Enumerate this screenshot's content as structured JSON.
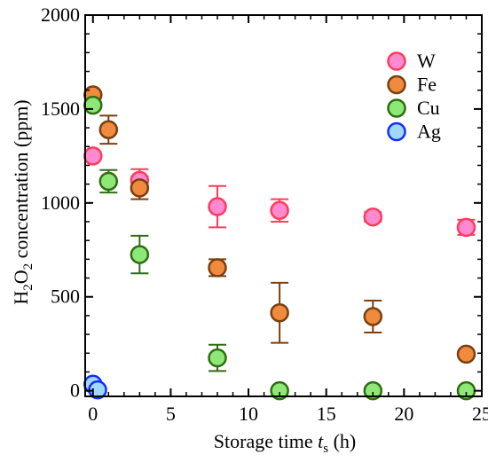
{
  "chart_data": {
    "type": "scatter",
    "xlabel_prefix": "Storage time ",
    "xlabel_var": "t",
    "xlabel_sub": "s",
    "xlabel_unit": " (h)",
    "ylabel_h": "H",
    "ylabel_sub1": "2",
    "ylabel_o": "O",
    "ylabel_sub2": "2",
    "ylabel_rest": " concentration (ppm)",
    "xlim": [
      -0.5,
      25
    ],
    "ylim": [
      -30,
      2000
    ],
    "xticks": [
      "0",
      "5",
      "10",
      "15",
      "20",
      "25"
    ],
    "yticks": [
      "0",
      "500",
      "1000",
      "1500",
      "2000"
    ],
    "legend_position": "top-right",
    "series": [
      {
        "name": "W",
        "color": "#ff3b5c",
        "fill": "#ff8ad0",
        "points": [
          {
            "x": 0,
            "y": 1250,
            "err": 0
          },
          {
            "x": 3,
            "y": 1120,
            "err": 60
          },
          {
            "x": 8,
            "y": 980,
            "err": 110
          },
          {
            "x": 12,
            "y": 960,
            "err": 60
          },
          {
            "x": 18,
            "y": 925,
            "err": 25
          },
          {
            "x": 24,
            "y": 870,
            "err": 40
          }
        ]
      },
      {
        "name": "Fe",
        "color": "#7a4010",
        "fill": "#f08a3c",
        "points": [
          {
            "x": 0,
            "y": 1575,
            "err": 0
          },
          {
            "x": 1,
            "y": 1390,
            "err": 75
          },
          {
            "x": 3,
            "y": 1080,
            "err": 60
          },
          {
            "x": 8,
            "y": 655,
            "err": 45
          },
          {
            "x": 12,
            "y": 415,
            "err": 160
          },
          {
            "x": 18,
            "y": 395,
            "err": 85
          },
          {
            "x": 24,
            "y": 195,
            "err": 0
          }
        ]
      },
      {
        "name": "Cu",
        "color": "#2e6e10",
        "fill": "#8ee878",
        "points": [
          {
            "x": 0,
            "y": 1520,
            "err": 0
          },
          {
            "x": 1,
            "y": 1115,
            "err": 60
          },
          {
            "x": 3,
            "y": 725,
            "err": 100
          },
          {
            "x": 8,
            "y": 175,
            "err": 70
          },
          {
            "x": 12,
            "y": 0,
            "err": 0
          },
          {
            "x": 18,
            "y": 0,
            "err": 0
          },
          {
            "x": 24,
            "y": 0,
            "err": 0
          }
        ]
      },
      {
        "name": "Ag",
        "color": "#1030ff",
        "fill": "#a0d8ff",
        "points": [
          {
            "x": 0,
            "y": 35,
            "err": 0
          },
          {
            "x": 0.3,
            "y": 5,
            "err": 0
          }
        ]
      }
    ]
  }
}
